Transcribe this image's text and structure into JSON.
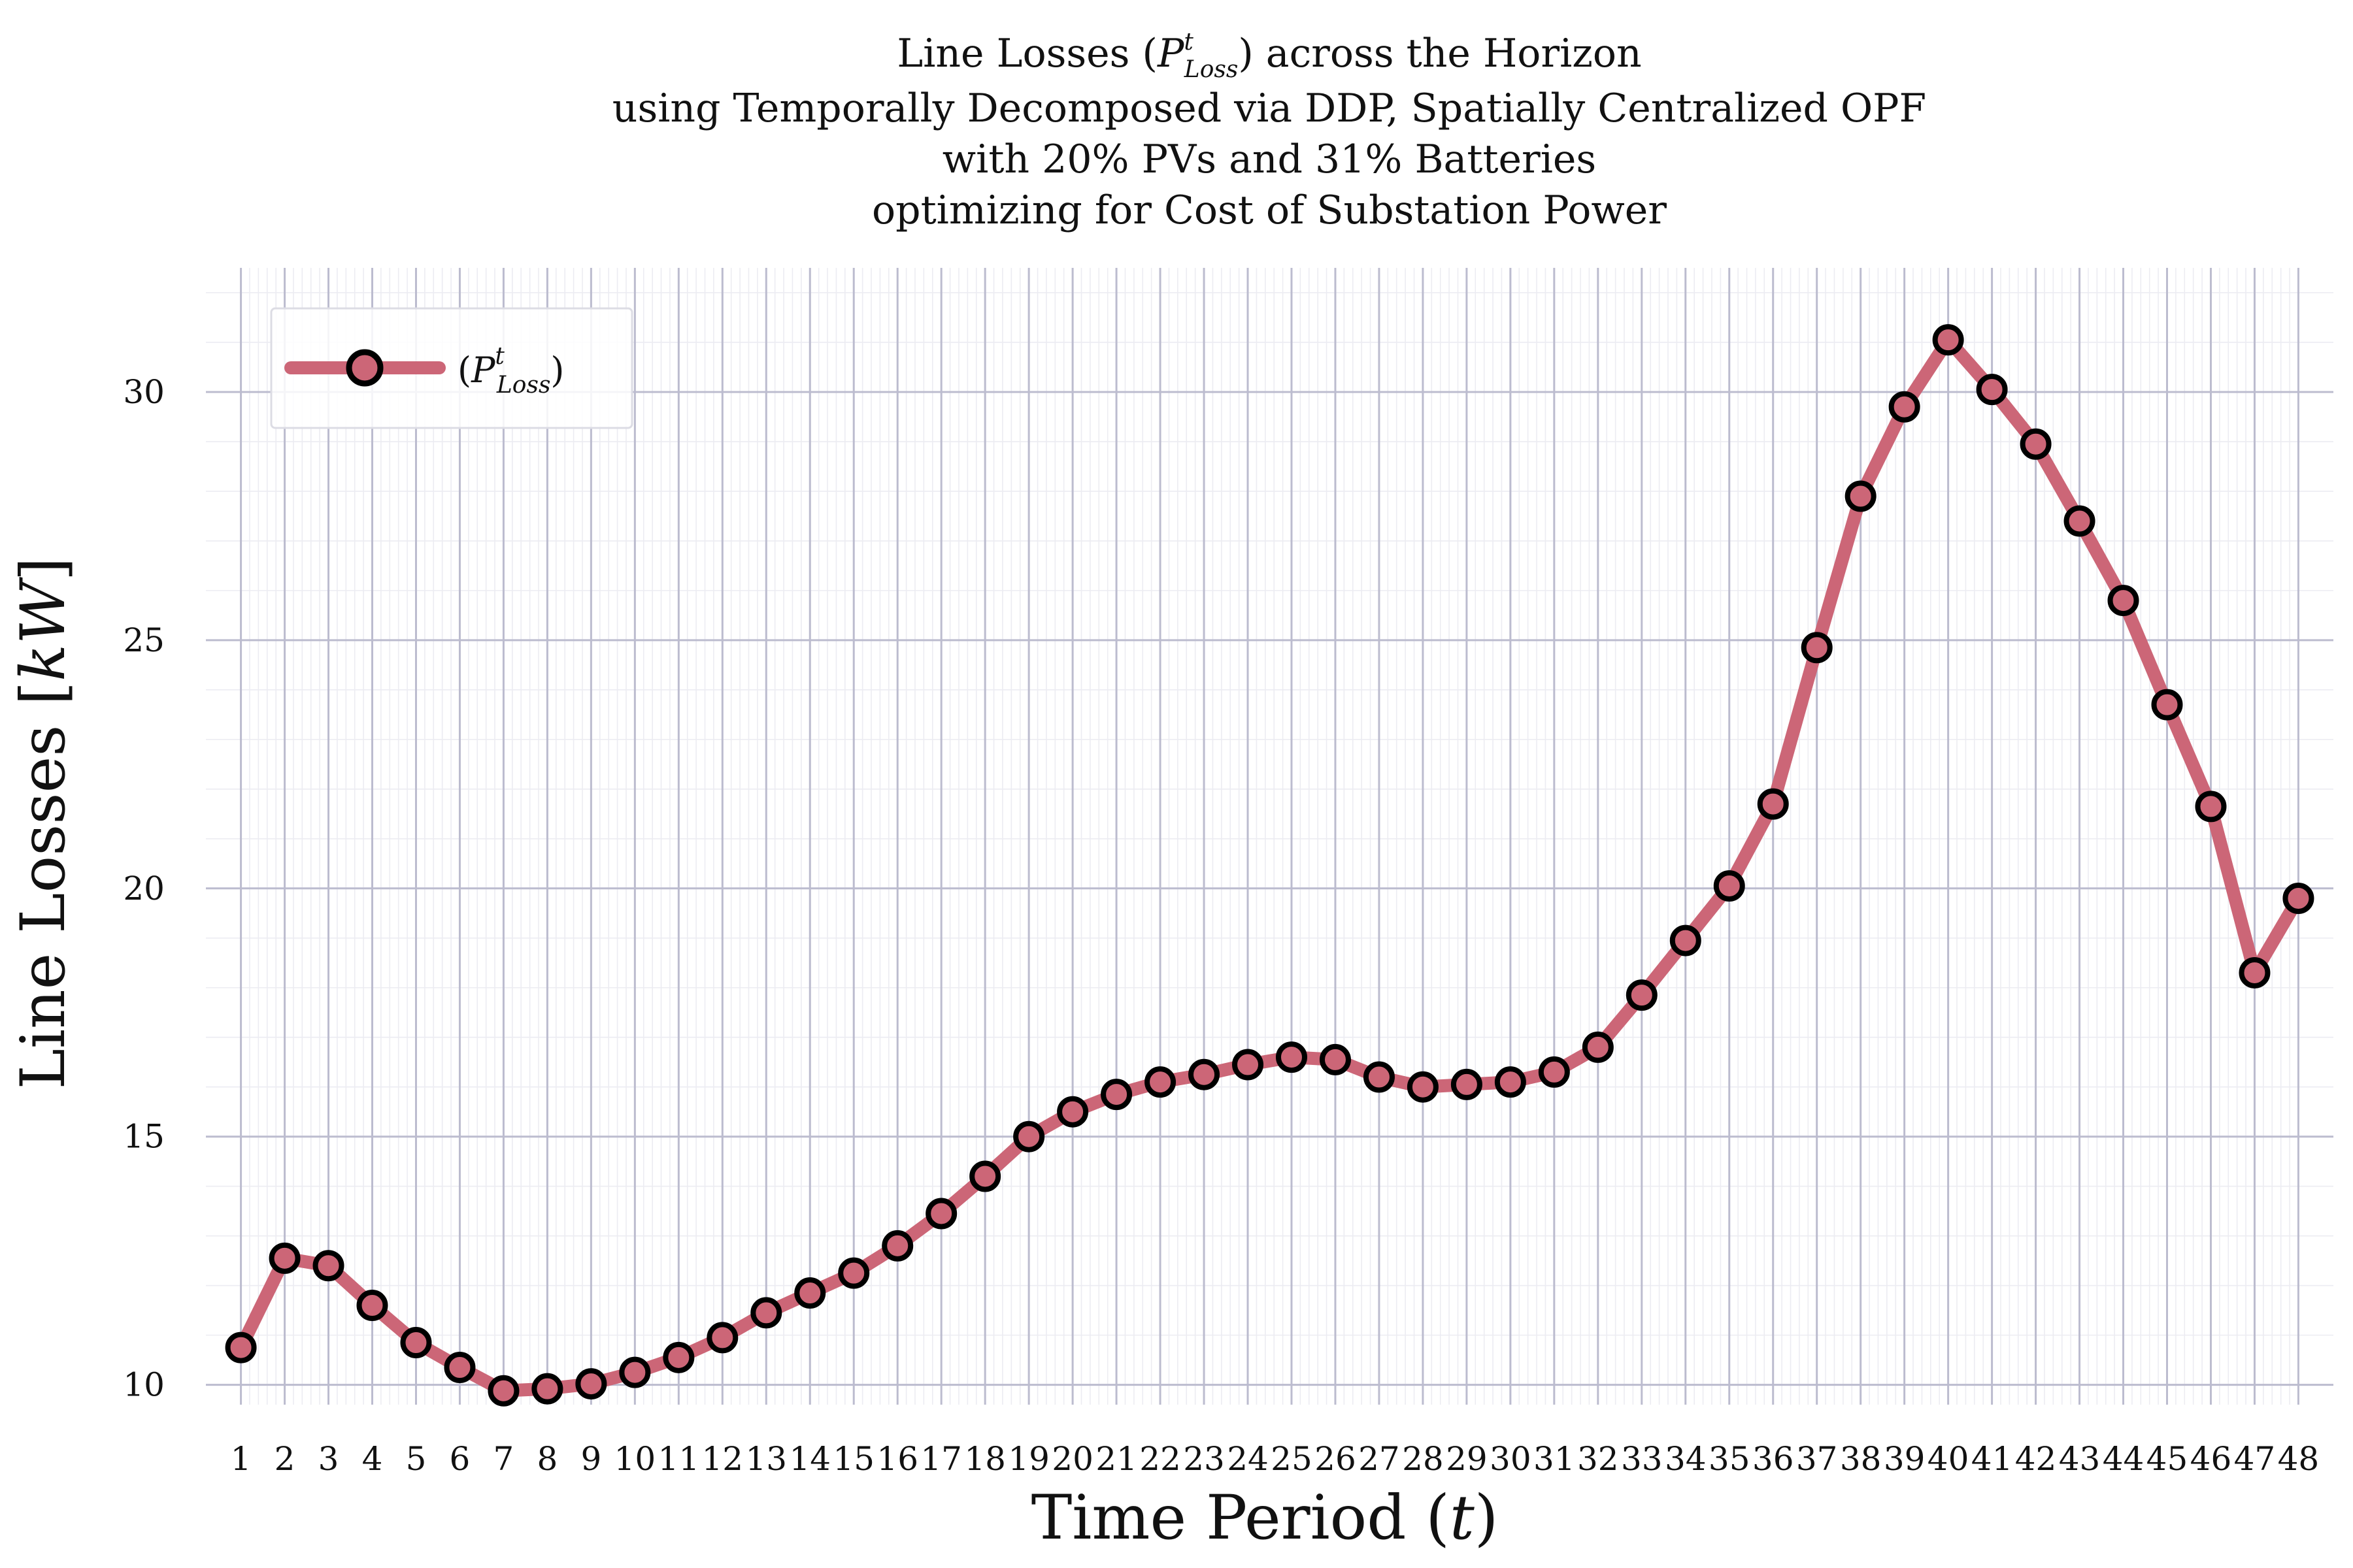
{
  "chart_data": {
    "type": "line",
    "title_lines": [
      "Line Losses (P^t_Loss) across the Horizon",
      "using Temporally Decomposed via DDP, Spatially Centralized OPF",
      "with 20% PVs and 31% Batteries",
      "optimizing for Cost of Substation Power"
    ],
    "title_parts": {
      "line1_pre": "Line Losses (",
      "line1_post": ") across the Horizon",
      "symbol_base": "P",
      "symbol_sup": "t",
      "symbol_sub": "Loss"
    },
    "xlabel": "Time Period (t)",
    "xlabel_parts": {
      "pre": "Time Period (",
      "var": "t",
      "post": ")"
    },
    "ylabel": "Line Losses [kW]",
    "ylabel_parts": {
      "pre": "Line Losses [",
      "var": "kW",
      "post": "]"
    },
    "x": [
      1,
      2,
      3,
      4,
      5,
      6,
      7,
      8,
      9,
      10,
      11,
      12,
      13,
      14,
      15,
      16,
      17,
      18,
      19,
      20,
      21,
      22,
      23,
      24,
      25,
      26,
      27,
      28,
      29,
      30,
      31,
      32,
      33,
      34,
      35,
      36,
      37,
      38,
      39,
      40,
      41,
      42,
      43,
      44,
      45,
      46,
      47,
      48
    ],
    "series": [
      {
        "name": "(P^t_Loss)",
        "color": "#cc6677",
        "marker_face": "#cc6677",
        "marker_edge": "#000000",
        "values": [
          10.75,
          12.55,
          12.4,
          11.6,
          10.85,
          10.35,
          9.88,
          9.92,
          10.02,
          10.25,
          10.55,
          10.95,
          11.45,
          11.85,
          12.25,
          12.8,
          13.45,
          14.2,
          15.0,
          15.5,
          15.85,
          16.1,
          16.25,
          16.45,
          16.6,
          16.55,
          16.2,
          16.0,
          16.05,
          16.1,
          16.3,
          16.8,
          17.85,
          18.95,
          20.05,
          21.7,
          24.85,
          27.9,
          29.7,
          31.05,
          30.05,
          28.95,
          27.4,
          25.8,
          23.7,
          21.65,
          18.3,
          19.8
        ]
      }
    ],
    "legend": {
      "position": "top-left",
      "label_parts": {
        "open": "(",
        "base": "P",
        "sup": "t",
        "sub": "Loss",
        "close": ")"
      }
    },
    "yticks": [
      10,
      15,
      20,
      25,
      30
    ],
    "ylim": [
      9.6,
      32.5
    ],
    "xlim": [
      0.2,
      48.8
    ],
    "grid": true,
    "colors": {
      "major_grid": "#bcbccf",
      "minor_grid": "#ececf2",
      "line": "#cc6677"
    }
  }
}
